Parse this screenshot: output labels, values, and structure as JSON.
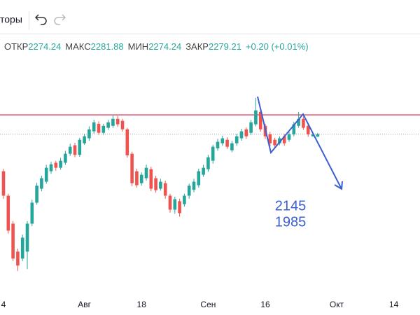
{
  "toolbar": {
    "indicators": "торы"
  },
  "legend": {
    "open": "ОТКР",
    "high": "МАКС",
    "low": "МИН",
    "close": "ЗАКР",
    "change": "+0.20 (+0.01%)"
  },
  "chart_data": {
    "type": "candlestick",
    "categories": [
      "4",
      null,
      null,
      null,
      null,
      null,
      null,
      null,
      null,
      null,
      null,
      null,
      null,
      null,
      null,
      null,
      null,
      "Авг",
      null,
      null,
      null,
      null,
      null,
      null,
      null,
      null,
      null,
      null,
      null,
      "18",
      null,
      null,
      null,
      null,
      null,
      null,
      null,
      null,
      null,
      null,
      null,
      null,
      null,
      "Сен",
      null,
      null,
      null,
      null,
      null,
      null,
      null,
      null,
      null,
      null,
      null,
      "16",
      null,
      null,
      null,
      null,
      null,
      null,
      null,
      null,
      null,
      null,
      null,
      null,
      null,
      null,
      "Окт",
      null,
      null,
      null,
      null,
      null,
      null,
      null,
      null,
      null,
      null,
      null,
      "14",
      null,
      null,
      null,
      null,
      null
    ],
    "open": [
      2205,
      2156,
      2100,
      2044,
      2030,
      2044,
      2100,
      2142,
      2170,
      2184,
      2205,
      2222,
      2212,
      2222,
      2240,
      2257,
      2238,
      2261,
      2271,
      2285,
      2300,
      2282,
      2292,
      2296,
      2310,
      2306,
      2289,
      2240,
      2205,
      2181,
      2191,
      2209,
      2191,
      2170,
      2181,
      2156,
      2128,
      2145,
      2139,
      2156,
      2168,
      2177,
      2198,
      2209,
      2226,
      2251,
      2261,
      2268,
      2247,
      2261,
      2271,
      2289,
      2282,
      2299,
      2324,
      2296,
      2279,
      2268,
      2261,
      2275,
      2268,
      2279,
      2296,
      2310,
      2296,
      2275,
      2274.24,
      null,
      null,
      null,
      null,
      null,
      null,
      null,
      null,
      null,
      null,
      null,
      null,
      null,
      null,
      null,
      null,
      null,
      null,
      null,
      null,
      null
    ],
    "high": [
      2210,
      2160,
      2105,
      2050,
      2078,
      2105,
      2148,
      2182,
      2196,
      2218,
      2224,
      2226,
      2232,
      2246,
      2260,
      2262,
      2272,
      2280,
      2295,
      2308,
      2305,
      2300,
      2308,
      2318,
      2316,
      2310,
      2292,
      2244,
      2210,
      2203,
      2218,
      2214,
      2196,
      2190,
      2186,
      2160,
      2154,
      2150,
      2160,
      2180,
      2190,
      2210,
      2218,
      2238,
      2258,
      2270,
      2276,
      2273,
      2266,
      2280,
      2290,
      2293,
      2308,
      2352,
      2330,
      2300,
      2284,
      2272,
      2275,
      2280,
      2283,
      2304,
      2324,
      2315,
      2300,
      2282,
      2281.88,
      null,
      null,
      null,
      null,
      null,
      null,
      null,
      null,
      null,
      null,
      null,
      null,
      null,
      null,
      null,
      null,
      null,
      null,
      null,
      null,
      null
    ],
    "low": [
      2150,
      2080,
      2025,
      2005,
      2025,
      2009,
      2095,
      2138,
      2165,
      2180,
      2200,
      2206,
      2208,
      2218,
      2236,
      2233,
      2234,
      2258,
      2266,
      2280,
      2278,
      2278,
      2288,
      2292,
      2294,
      2284,
      2232,
      2175,
      2172,
      2176,
      2186,
      2165,
      2162,
      2166,
      2150,
      2122,
      2120,
      2114,
      2134,
      2150,
      2163,
      2172,
      2194,
      2204,
      2220,
      2246,
      2256,
      2250,
      2243,
      2256,
      2266,
      2270,
      2278,
      2295,
      2284,
      2270,
      2255,
      2252,
      2257,
      2256,
      2264,
      2275,
      2292,
      2288,
      2274,
      2274,
      2274.24,
      null,
      null,
      null,
      null,
      null,
      null,
      null,
      null,
      null,
      null,
      null,
      null,
      null,
      null,
      null,
      null,
      null,
      null,
      null,
      null,
      null
    ],
    "close": [
      2156,
      2086,
      2030,
      2016,
      2072,
      2100,
      2142,
      2176,
      2191,
      2212,
      2219,
      2212,
      2226,
      2240,
      2254,
      2238,
      2268,
      2275,
      2289,
      2303,
      2282,
      2296,
      2303,
      2310,
      2299,
      2289,
      2237,
      2181,
      2177,
      2198,
      2212,
      2170,
      2167,
      2184,
      2156,
      2128,
      2149,
      2121,
      2156,
      2176,
      2184,
      2205,
      2212,
      2233,
      2254,
      2264,
      2271,
      2254,
      2261,
      2275,
      2285,
      2275,
      2303,
      2327,
      2289,
      2275,
      2261,
      2257,
      2271,
      2261,
      2279,
      2299,
      2310,
      2292,
      2279,
      2279,
      2279.21,
      null,
      null,
      null,
      null,
      null,
      null,
      null,
      null,
      null,
      null,
      null,
      null,
      null,
      null,
      null,
      null,
      null,
      null,
      null,
      null,
      null
    ],
    "up_color": "#26a69a",
    "down_color": "#ef5350",
    "ylim": [
      1952,
      2478
    ],
    "hlines": [
      {
        "value": 2318,
        "color": "#e0506a"
      }
    ],
    "annotations": [
      "2145",
      "1985"
    ],
    "annotation_color": "#3b5fd0"
  }
}
